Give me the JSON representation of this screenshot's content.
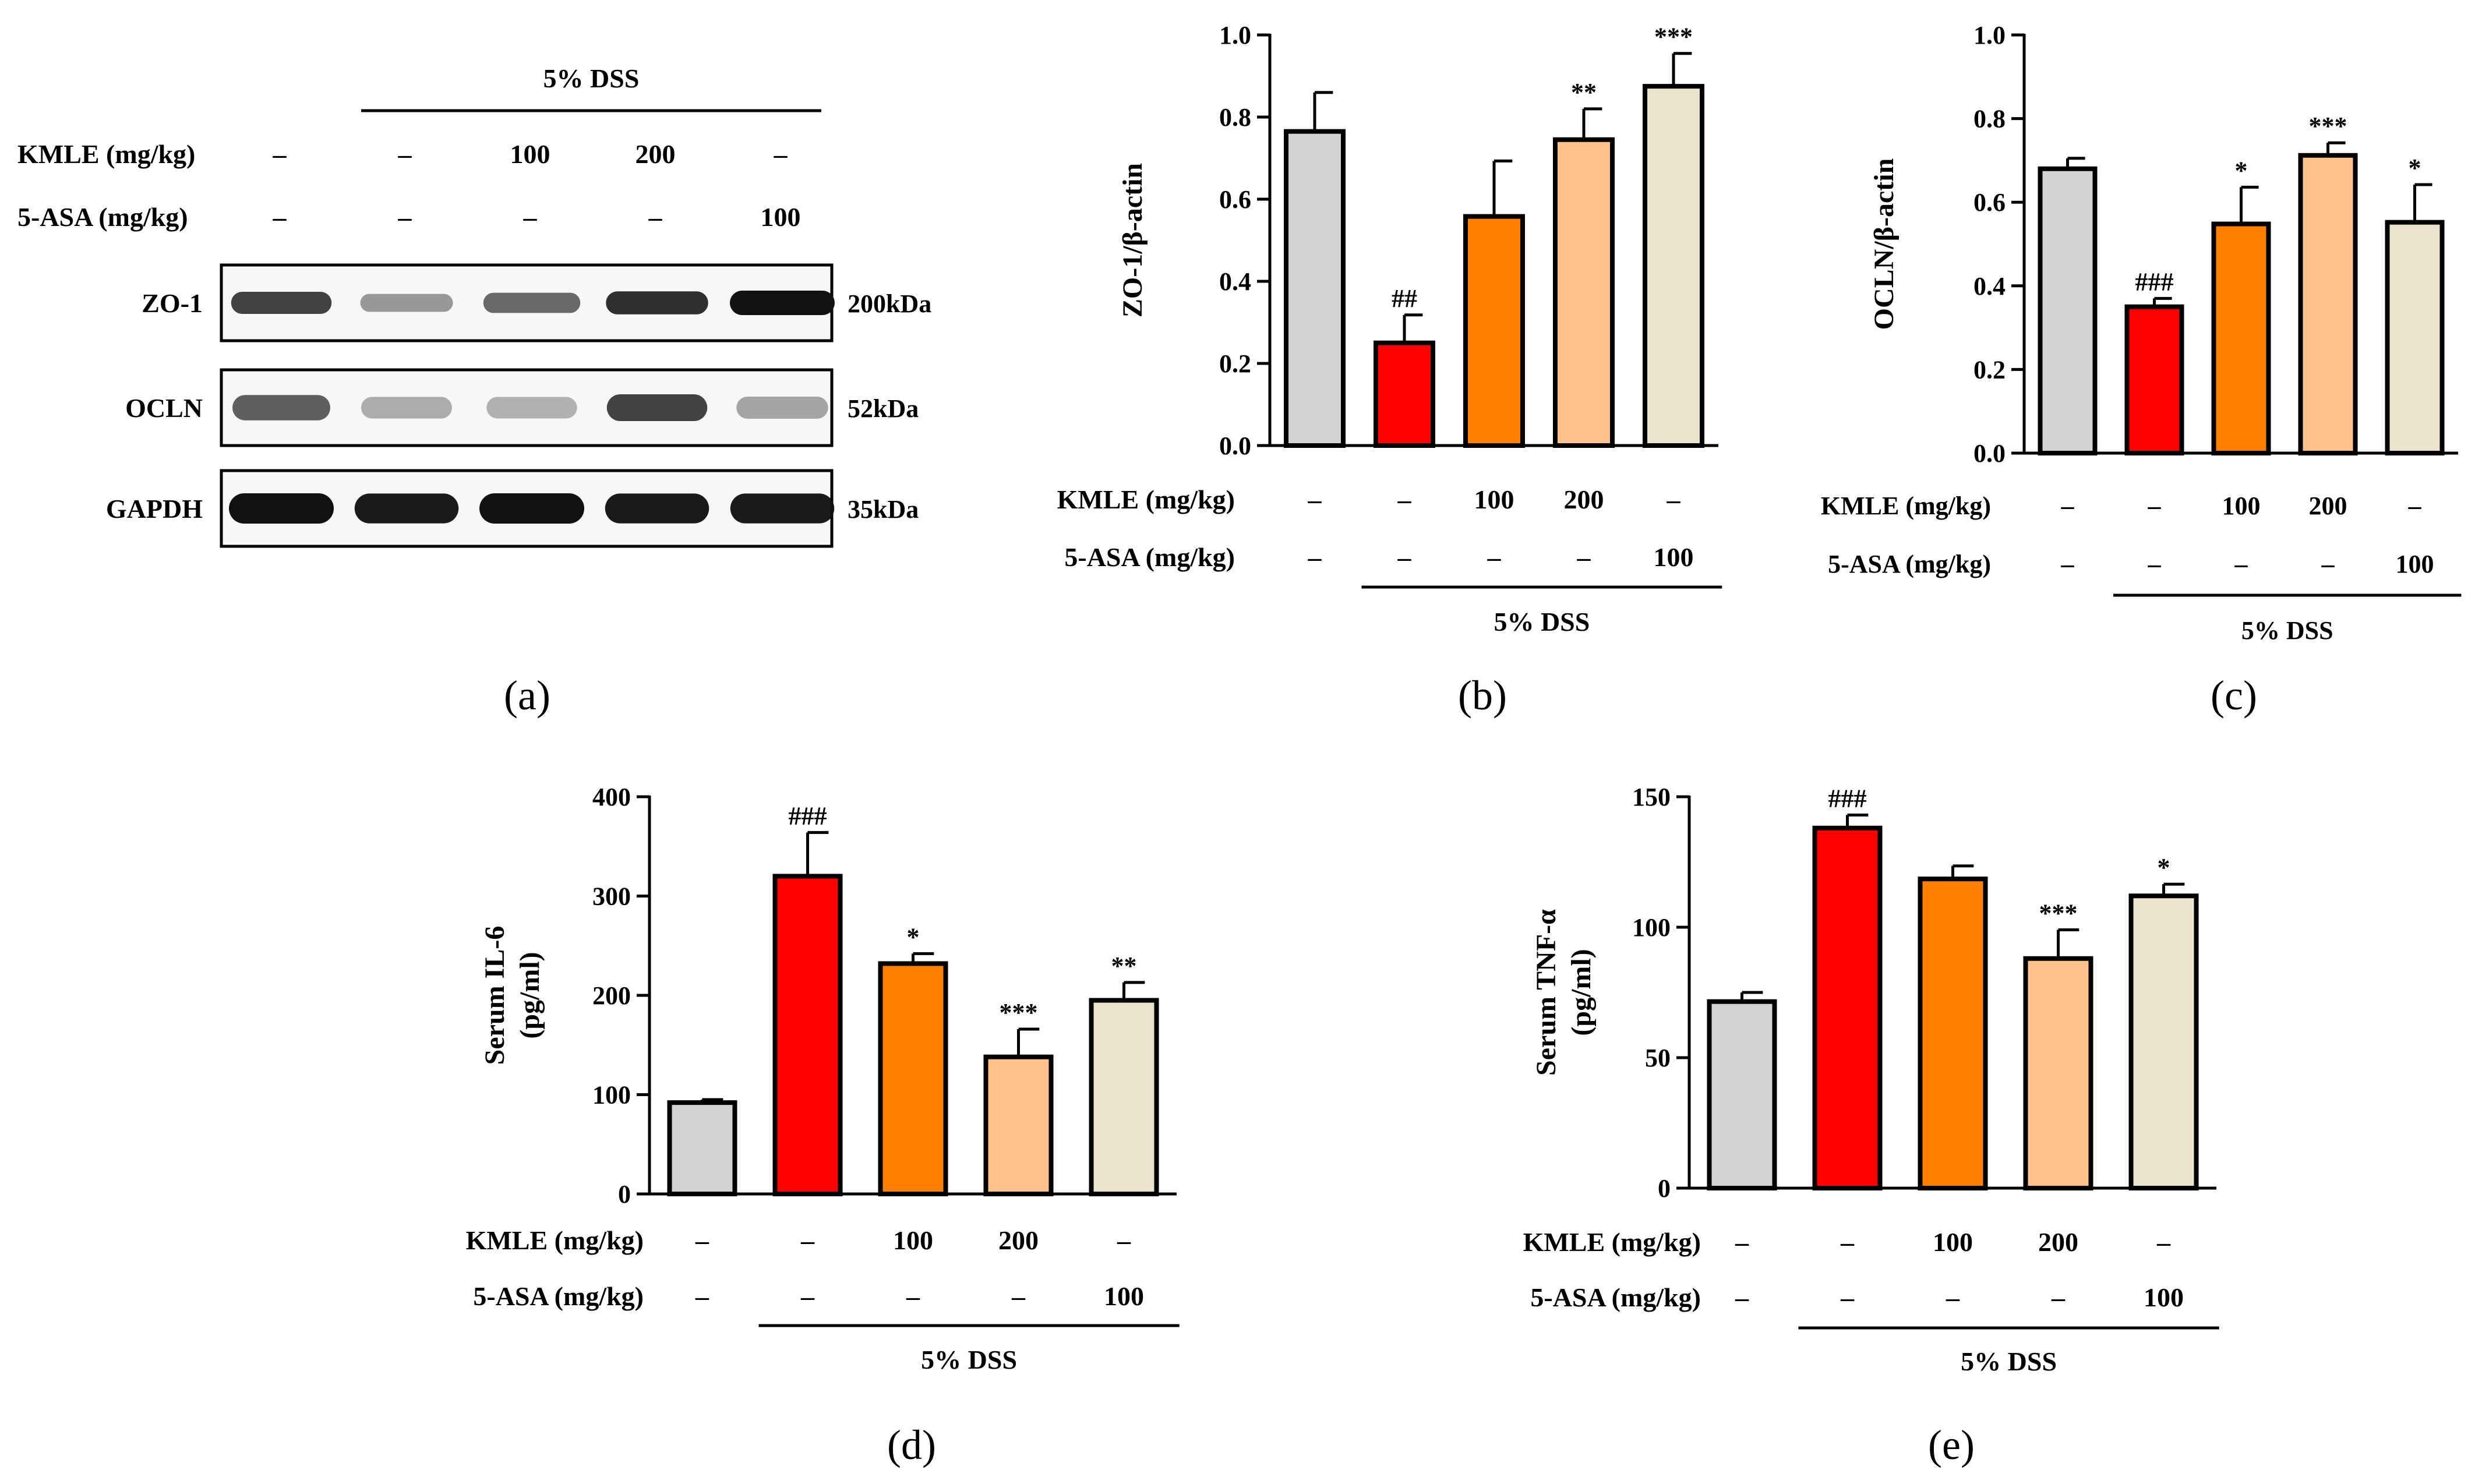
{
  "panels": {
    "a": {
      "caption": "(a)",
      "dss_label": "5% DSS",
      "row_labels": {
        "kmle": "KMLE (mg/kg)",
        "asa": "5-ASA (mg/kg)"
      },
      "kmle_values": [
        "–",
        "–",
        "100",
        "200",
        "–"
      ],
      "asa_values": [
        "–",
        "–",
        "–",
        "–",
        "100"
      ],
      "blots": [
        {
          "name": "ZO-1",
          "size": "200kDa",
          "intensities": [
            0.75,
            0.3,
            0.55,
            0.85,
            1.0
          ]
        },
        {
          "name": "OCLN",
          "size": "52kDa",
          "intensities": [
            0.6,
            0.2,
            0.18,
            0.75,
            0.25
          ]
        },
        {
          "name": "GAPDH",
          "size": "35kDa",
          "intensities": [
            1.0,
            0.95,
            1.0,
            0.95,
            0.95
          ]
        }
      ]
    }
  },
  "chart_data": [
    {
      "id": "b",
      "type": "bar",
      "caption": "(b)",
      "ylabel": "ZO-1/β-actin",
      "ylim": [
        0,
        1.0
      ],
      "yticks": [
        "0.0",
        "0.2",
        "0.4",
        "0.6",
        "0.8",
        "1.0"
      ],
      "values": [
        0.765,
        0.25,
        0.558,
        0.745,
        0.875
      ],
      "errors": [
        0.095,
        0.068,
        0.135,
        0.075,
        0.08
      ],
      "labels": [
        "",
        "##",
        "",
        "**",
        "***"
      ],
      "kmle_label": "KMLE (mg/kg)",
      "asa_label": "5-ASA (mg/kg)",
      "kmle_values": [
        "–",
        "–",
        "100",
        "200",
        "–"
      ],
      "asa_values": [
        "–",
        "–",
        "–",
        "–",
        "100"
      ],
      "group_label": "5% DSS"
    },
    {
      "id": "c",
      "type": "bar",
      "caption": "(c)",
      "ylabel": "OCLN/β-actin",
      "ylim": [
        0,
        1.0
      ],
      "yticks": [
        "0.0",
        "0.2",
        "0.4",
        "0.6",
        "0.8",
        "1.0"
      ],
      "values": [
        0.68,
        0.35,
        0.548,
        0.712,
        0.552
      ],
      "errors": [
        0.025,
        0.02,
        0.088,
        0.03,
        0.09
      ],
      "labels": [
        "",
        "###",
        "*",
        "***",
        "*"
      ],
      "kmle_label": "KMLE (mg/kg)",
      "asa_label": "5-ASA (mg/kg)",
      "kmle_values": [
        "–",
        "–",
        "100",
        "200",
        "–"
      ],
      "asa_values": [
        "–",
        "–",
        "–",
        "–",
        "100"
      ],
      "group_label": "5% DSS"
    },
    {
      "id": "d",
      "type": "bar",
      "caption": "(d)",
      "ylabel": "Serum IL-6",
      "ylabel2": "(pg/ml)",
      "ylim": [
        0,
        400
      ],
      "yticks": [
        "0",
        "100",
        "200",
        "300",
        "400"
      ],
      "values": [
        92,
        320,
        232,
        138,
        195
      ],
      "errors": [
        3,
        44,
        10,
        28,
        18
      ],
      "labels": [
        "",
        "###",
        "*",
        "***",
        "**"
      ],
      "kmle_label": "KMLE (mg/kg)",
      "asa_label": "5-ASA (mg/kg)",
      "kmle_values": [
        "–",
        "–",
        "100",
        "200",
        "–"
      ],
      "asa_values": [
        "–",
        "–",
        "–",
        "–",
        "100"
      ],
      "group_label": "5% DSS"
    },
    {
      "id": "e",
      "type": "bar",
      "caption": "(e)",
      "ylabel": "Serum TNF-α",
      "ylabel2": "(pg/ml)",
      "ylim": [
        0,
        150
      ],
      "yticks": [
        "0",
        "50",
        "100",
        "150"
      ],
      "values": [
        71.5,
        138,
        118.5,
        88,
        112
      ],
      "errors": [
        3.5,
        5,
        5,
        11,
        4.5
      ],
      "labels": [
        "",
        "###",
        "",
        "***",
        "*"
      ],
      "kmle_label": "KMLE (mg/kg)",
      "asa_label": "5-ASA (mg/kg)",
      "kmle_values": [
        "–",
        "–",
        "100",
        "200",
        "–"
      ],
      "asa_values": [
        "–",
        "–",
        "–",
        "–",
        "100"
      ],
      "group_label": "5% DSS"
    }
  ],
  "colors": {
    "groups": [
      "#d3d3d3",
      "#ff0000",
      "#ff7f00",
      "#ffc28a",
      "#eae4cc"
    ],
    "bar_stroke": "#000000",
    "band": "#111111"
  }
}
